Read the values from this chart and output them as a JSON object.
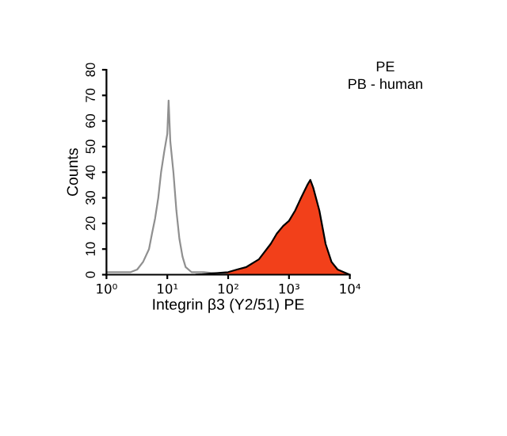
{
  "chart_data": {
    "type": "line",
    "xlabel": "Integrin β3 (Y2/51) PE",
    "ylabel": "Counts",
    "annotations": [
      "PE",
      "PB - human"
    ],
    "log": "x",
    "xlim": [
      1,
      10000
    ],
    "xticks": [
      {
        "value": 1,
        "label": "10⁰"
      },
      {
        "value": 10,
        "label": "10¹"
      },
      {
        "value": 100,
        "label": "10²"
      },
      {
        "value": 1000,
        "label": "10³"
      },
      {
        "value": 10000,
        "label": "10⁴"
      }
    ],
    "ylim": [
      0,
      80
    ],
    "yticks": [
      0,
      10,
      20,
      30,
      40,
      50,
      60,
      70,
      80
    ],
    "grid": false,
    "series": [
      {
        "color": "#909090",
        "x": [
          1,
          1.6,
          2.5,
          3.2,
          4,
          5,
          5.6,
          6.3,
          7.1,
          7.9,
          8.9,
          10,
          10.5,
          11.2,
          12.6,
          14.1,
          15.8,
          17.8,
          20,
          25,
          40,
          100
        ],
        "values": [
          1,
          1,
          1,
          2,
          5,
          10,
          16,
          22,
          30,
          40,
          48,
          55,
          68,
          52,
          40,
          25,
          14,
          7,
          3,
          1,
          1,
          0
        ]
      },
      {
        "type": "area",
        "color": "#f2401a",
        "x": [
          30,
          100,
          140,
          200,
          320,
          500,
          630,
          800,
          1000,
          1260,
          1580,
          2000,
          2240,
          2500,
          3160,
          4000,
          5000,
          6300,
          7900,
          10000
        ],
        "values": [
          0,
          1,
          2,
          3,
          6,
          12,
          16,
          19,
          21,
          25,
          30,
          35,
          37,
          34,
          25,
          12,
          5,
          2,
          1,
          0
        ]
      }
    ]
  }
}
